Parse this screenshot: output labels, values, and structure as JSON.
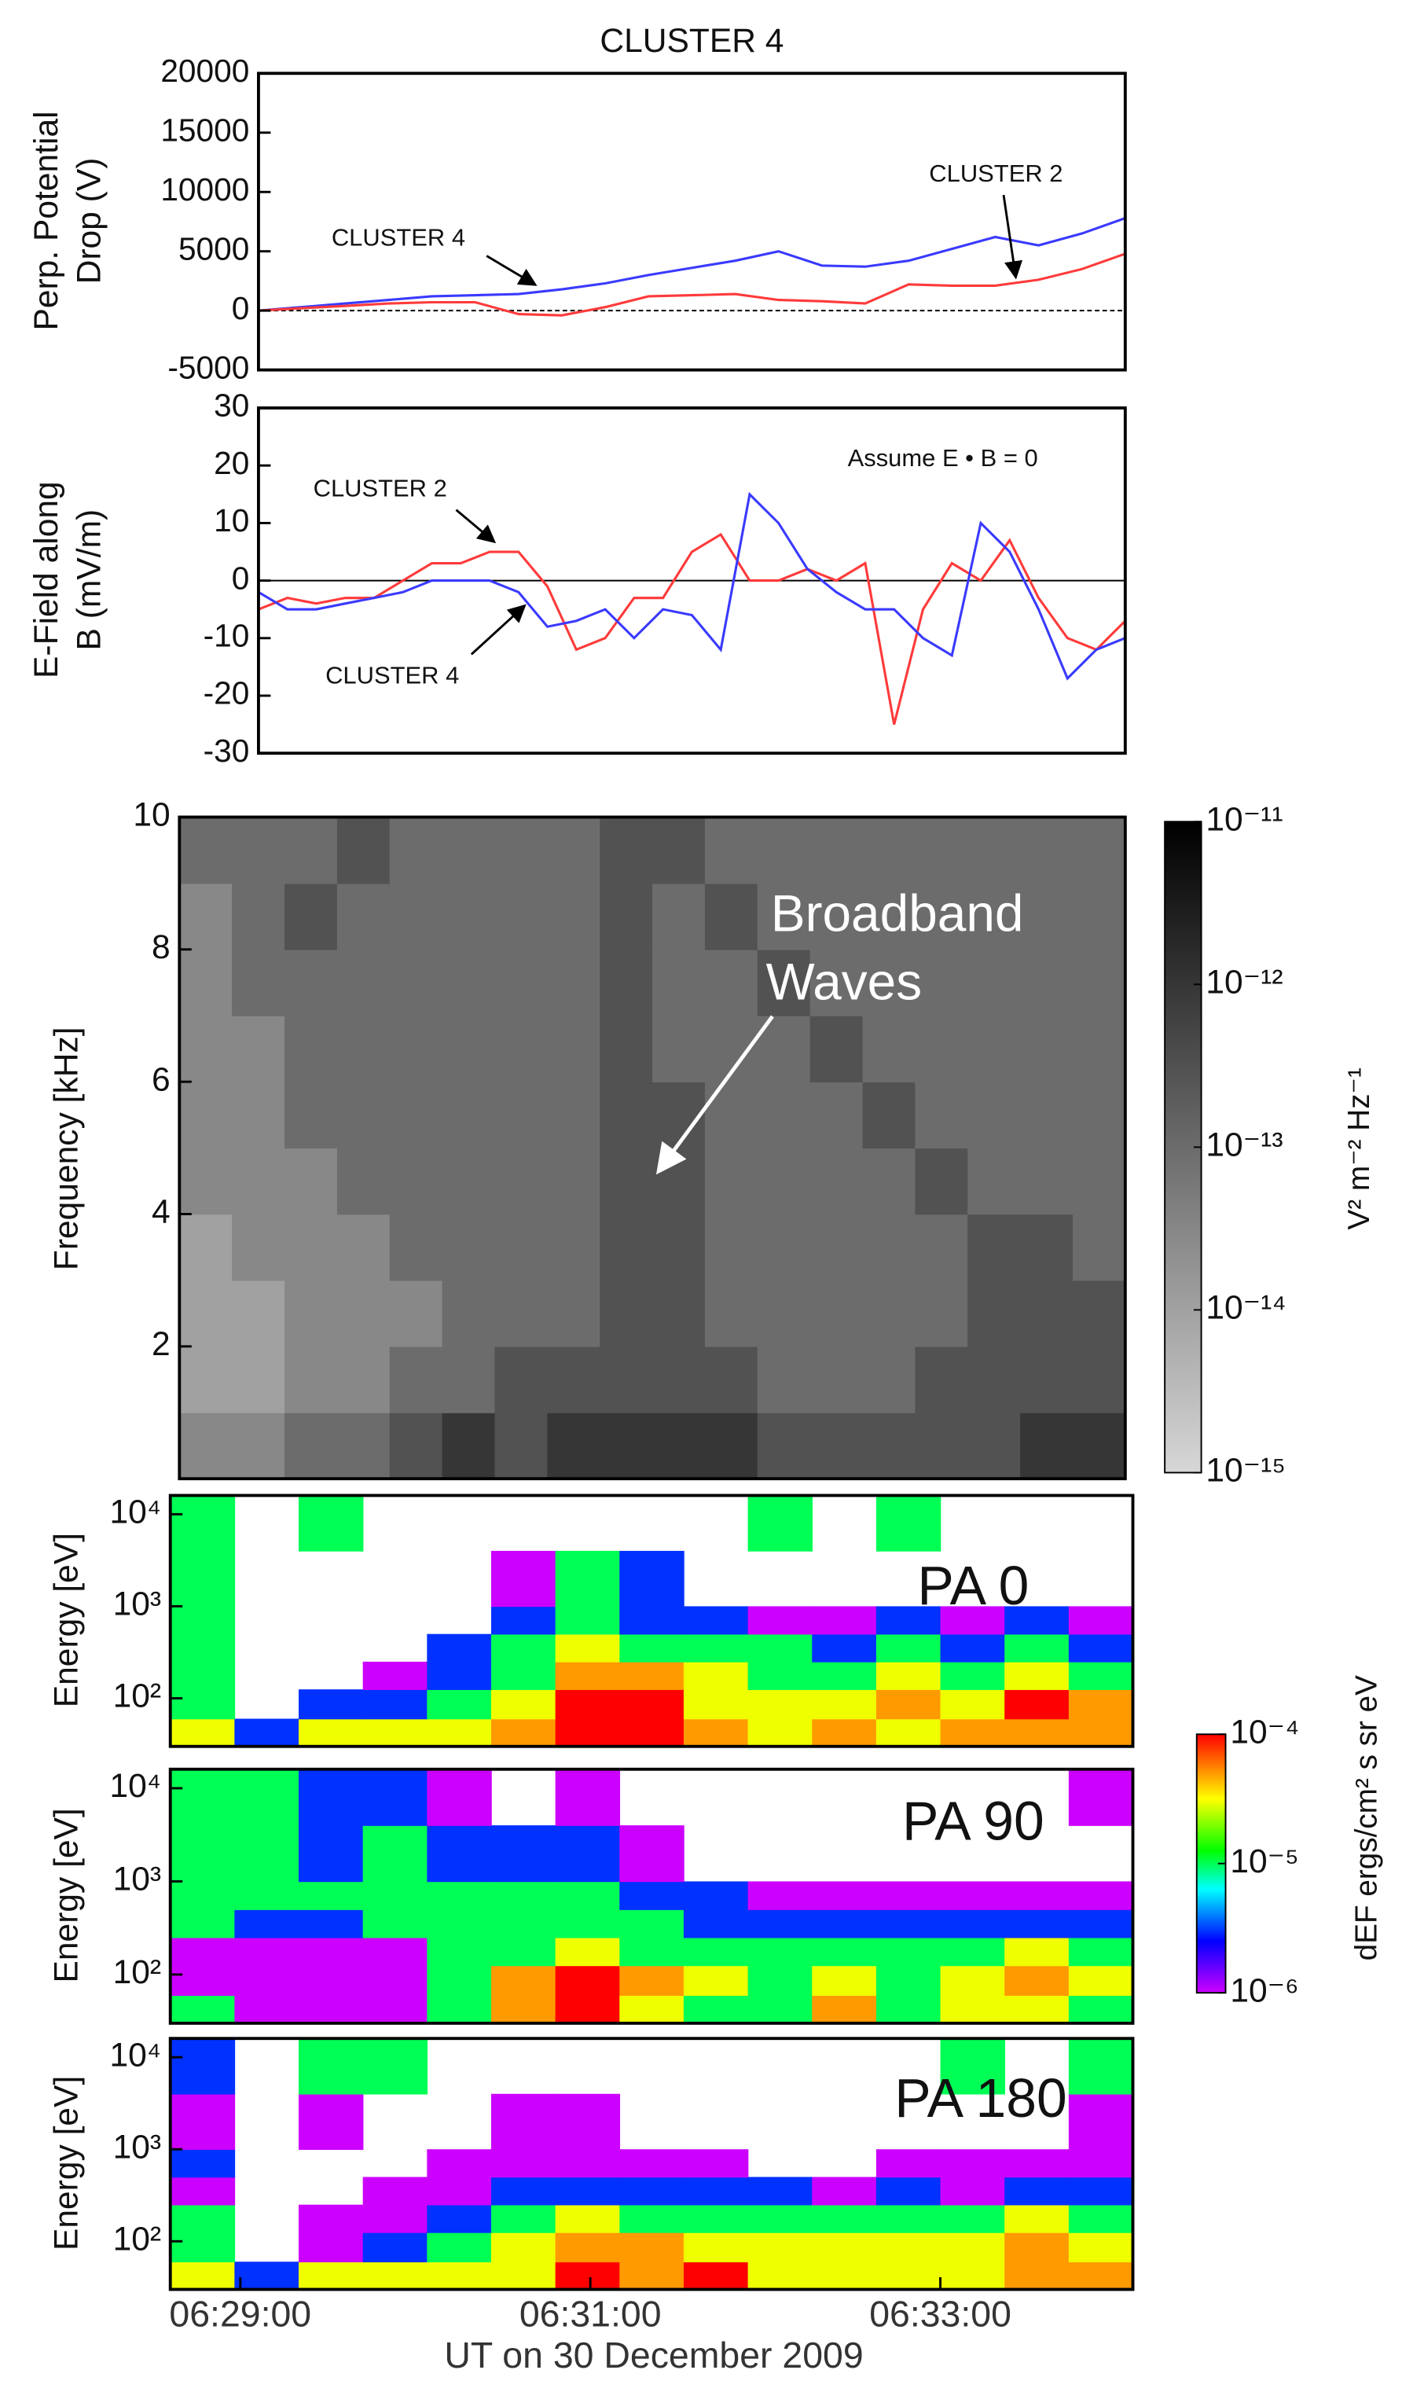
{
  "chart_data": [
    {
      "type": "line",
      "title": "CLUSTER 4",
      "ylabel": [
        "Perp. Potential",
        "Drop (V)"
      ],
      "xlim": [
        "06:29:00",
        "06:34:00"
      ],
      "x": [
        "06:29:00",
        "06:29:15",
        "06:29:30",
        "06:29:45",
        "06:30:00",
        "06:30:15",
        "06:30:30",
        "06:30:45",
        "06:31:00",
        "06:31:15",
        "06:31:30",
        "06:31:45",
        "06:32:00",
        "06:32:15",
        "06:32:30",
        "06:32:45",
        "06:33:00",
        "06:33:15",
        "06:33:30",
        "06:33:45",
        "06:34:00"
      ],
      "ylim": [
        -5000,
        20000
      ],
      "yticks": [
        -5000,
        0,
        5000,
        10000,
        15000,
        20000
      ],
      "zero_line": true,
      "series": [
        {
          "name": "CLUSTER 4",
          "color": "#3a3aff",
          "values": [
            0,
            300,
            600,
            900,
            1200,
            1300,
            1400,
            1800,
            2300,
            3000,
            3600,
            4200,
            5000,
            3800,
            3700,
            4200,
            5200,
            6200,
            5500,
            6500,
            7800
          ]
        },
        {
          "name": "CLUSTER 2",
          "color": "#ff3a3a",
          "values": [
            0,
            200,
            400,
            600,
            700,
            700,
            -300,
            -400,
            300,
            1200,
            1300,
            1400,
            900,
            800,
            600,
            2200,
            2100,
            2100,
            2600,
            3500,
            4800
          ]
        }
      ]
    },
    {
      "type": "line",
      "ylabel": [
        "E-Field along",
        "B (mV/m)"
      ],
      "annotation": "Assume E • B = 0",
      "xlim": [
        "06:29:00",
        "06:34:00"
      ],
      "x": [
        "06:29:00",
        "06:29:10",
        "06:29:20",
        "06:29:30",
        "06:29:40",
        "06:29:50",
        "06:30:00",
        "06:30:10",
        "06:30:20",
        "06:30:30",
        "06:30:40",
        "06:30:50",
        "06:31:00",
        "06:31:10",
        "06:31:20",
        "06:31:30",
        "06:31:40",
        "06:31:50",
        "06:32:00",
        "06:32:10",
        "06:32:20",
        "06:32:30",
        "06:32:40",
        "06:32:50",
        "06:33:00",
        "06:33:10",
        "06:33:20",
        "06:33:30",
        "06:33:40",
        "06:33:50",
        "06:34:00"
      ],
      "ylim": [
        -30,
        30
      ],
      "yticks": [
        -30,
        -20,
        -10,
        0,
        10,
        20,
        30
      ],
      "zero_line": true,
      "series": [
        {
          "name": "CLUSTER 2",
          "color": "#ff3a3a",
          "values": [
            -5,
            -3,
            -4,
            -3,
            -3,
            0,
            3,
            3,
            5,
            5,
            -1,
            -12,
            -10,
            -3,
            -3,
            5,
            8,
            0,
            0,
            2,
            0,
            3,
            -25,
            -5,
            3,
            0,
            7,
            -3,
            -10,
            -12,
            -7
          ]
        },
        {
          "name": "CLUSTER 4",
          "color": "#3a3aff",
          "values": [
            -2,
            -5,
            -5,
            -4,
            -3,
            -2,
            0,
            0,
            0,
            -2,
            -8,
            -7,
            -5,
            -10,
            -5,
            -6,
            -12,
            15,
            10,
            2,
            -2,
            -5,
            -5,
            -10,
            -13,
            10,
            5,
            -5,
            -17,
            -12,
            -10
          ]
        }
      ]
    },
    {
      "type": "spectrogram",
      "ylabel": "Frequency [kHz]",
      "annotation": [
        "Broadband",
        "Waves"
      ],
      "colormap": "gray",
      "xlim": [
        "06:28:36",
        "06:34:00"
      ],
      "xbins": [
        "06:28:36",
        "06:28:54",
        "06:29:12",
        "06:29:30",
        "06:29:48",
        "06:30:06",
        "06:30:24",
        "06:30:42",
        "06:31:00",
        "06:31:18",
        "06:31:36",
        "06:31:54",
        "06:32:12",
        "06:32:30",
        "06:32:48",
        "06:33:06",
        "06:33:24",
        "06:33:42",
        "06:34:00"
      ],
      "ybins": [
        0,
        1,
        2,
        3,
        4,
        5,
        6,
        7,
        8,
        9,
        10
      ],
      "ylim": [
        0,
        10
      ],
      "yticks": [
        2,
        4,
        6,
        8,
        10
      ],
      "z": [
        [
          3e-14,
          3e-14,
          1e-13,
          1e-13,
          3e-13,
          1e-12,
          3e-13,
          1e-12,
          1e-12,
          1e-12,
          1e-12,
          3e-13,
          3e-13,
          3e-13,
          3e-13,
          3e-13,
          1e-12,
          1e-12
        ],
        [
          1e-14,
          1e-14,
          3e-14,
          3e-14,
          1e-13,
          1e-13,
          3e-13,
          3e-13,
          3e-13,
          3e-13,
          3e-13,
          1e-13,
          1e-13,
          1e-13,
          3e-13,
          3e-13,
          3e-13,
          3e-13
        ],
        [
          1e-14,
          1e-14,
          3e-14,
          3e-14,
          3e-14,
          1e-13,
          1e-13,
          1e-13,
          3e-13,
          3e-13,
          1e-13,
          1e-13,
          1e-13,
          1e-13,
          1e-13,
          3e-13,
          3e-13,
          3e-13
        ],
        [
          1e-14,
          3e-14,
          3e-14,
          3e-14,
          1e-13,
          1e-13,
          1e-13,
          1e-13,
          3e-13,
          3e-13,
          1e-13,
          1e-13,
          1e-13,
          1e-13,
          1e-13,
          3e-13,
          3e-13,
          1e-13
        ],
        [
          3e-14,
          3e-14,
          3e-14,
          1e-13,
          1e-13,
          1e-13,
          1e-13,
          1e-13,
          3e-13,
          3e-13,
          1e-13,
          1e-13,
          1e-13,
          1e-13,
          3e-13,
          1e-13,
          1e-13,
          1e-13
        ],
        [
          3e-14,
          3e-14,
          1e-13,
          1e-13,
          1e-13,
          1e-13,
          1e-13,
          1e-13,
          3e-13,
          3e-13,
          1e-13,
          1e-13,
          1e-13,
          3e-13,
          1e-13,
          1e-13,
          1e-13,
          1e-13
        ],
        [
          3e-14,
          3e-14,
          1e-13,
          1e-13,
          1e-13,
          1e-13,
          1e-13,
          1e-13,
          3e-13,
          1e-13,
          1e-13,
          1e-13,
          3e-13,
          1e-13,
          1e-13,
          1e-13,
          1e-13,
          1e-13
        ],
        [
          3e-14,
          1e-13,
          1e-13,
          1e-13,
          1e-13,
          1e-13,
          1e-13,
          1e-13,
          3e-13,
          1e-13,
          1e-13,
          3e-13,
          1e-13,
          1e-13,
          1e-13,
          1e-13,
          1e-13,
          1e-13
        ],
        [
          3e-14,
          1e-13,
          3e-13,
          1e-13,
          1e-13,
          1e-13,
          1e-13,
          1e-13,
          3e-13,
          1e-13,
          3e-13,
          1e-13,
          1e-13,
          1e-13,
          1e-13,
          1e-13,
          1e-13,
          1e-13
        ],
        [
          1e-13,
          1e-13,
          1e-13,
          3e-13,
          1e-13,
          1e-13,
          1e-13,
          1e-13,
          3e-13,
          3e-13,
          1e-13,
          1e-13,
          1e-13,
          1e-13,
          1e-13,
          1e-13,
          1e-13,
          1e-13
        ]
      ],
      "colorbar": {
        "label": "V² m⁻² Hz⁻¹",
        "lim": [
          1e-15,
          1e-11
        ],
        "log": true,
        "ticks": [
          {
            "value": 1e-11,
            "label": "10⁻¹¹"
          },
          {
            "value": 1e-12,
            "label": "10⁻¹²"
          },
          {
            "value": 1e-13,
            "label": "10⁻¹³"
          },
          {
            "value": 1e-14,
            "label": "10⁻¹⁴"
          },
          {
            "value": 1e-15,
            "label": "10⁻¹⁵"
          }
        ]
      }
    },
    {
      "type": "spectrogram",
      "ylabel": "Energy [eV]",
      "panel_label": "PA 0",
      "colormap": "jet",
      "clim": [
        1e-06,
        0.0001
      ],
      "ylog": true,
      "xlim": [
        "06:28:36",
        "06:34:06"
      ],
      "xbins": [
        "06:28:36",
        "06:28:58",
        "06:29:20",
        "06:29:42",
        "06:30:04",
        "06:30:26",
        "06:30:48",
        "06:31:10",
        "06:31:32",
        "06:31:54",
        "06:32:16",
        "06:32:38",
        "06:33:00",
        "06:33:22",
        "06:33:44",
        "06:34:06"
      ],
      "ybins": [
        30,
        60,
        125,
        250,
        500,
        1000,
        4000,
        16000
      ],
      "ylim": [
        30,
        16000
      ],
      "yticks": [
        {
          "value": 100,
          "label": "10²"
        },
        {
          "value": 1000,
          "label": "10³"
        },
        {
          "value": 10000,
          "label": "10⁴"
        }
      ],
      "z": [
        [
          3e-05,
          3e-06,
          3e-05,
          3e-05,
          3e-05,
          5e-05,
          0.0001,
          0.0001,
          5e-05,
          3e-05,
          5e-05,
          3e-05,
          5e-05,
          5e-05,
          5e-05
        ],
        [
          1e-05,
          null,
          3e-06,
          3e-06,
          1e-05,
          3e-05,
          0.0001,
          0.0001,
          3e-05,
          3e-05,
          3e-05,
          5e-05,
          3e-05,
          0.0001,
          5e-05
        ],
        [
          1e-05,
          null,
          null,
          1e-06,
          3e-06,
          1e-05,
          5e-05,
          5e-05,
          3e-05,
          1e-05,
          1e-05,
          3e-05,
          1e-05,
          3e-05,
          1e-05
        ],
        [
          1e-05,
          null,
          null,
          null,
          3e-06,
          1e-05,
          3e-05,
          1e-05,
          1e-05,
          1e-05,
          3e-06,
          1e-05,
          3e-06,
          1e-05,
          3e-06
        ],
        [
          1e-05,
          null,
          null,
          null,
          null,
          3e-06,
          1e-05,
          3e-06,
          3e-06,
          1e-06,
          1e-06,
          3e-06,
          1e-06,
          3e-06,
          1e-06
        ],
        [
          1e-05,
          null,
          null,
          null,
          null,
          1e-06,
          1e-05,
          3e-06,
          null,
          null,
          null,
          null,
          null,
          null,
          null
        ],
        [
          1e-05,
          null,
          1e-05,
          null,
          null,
          null,
          null,
          null,
          null,
          1e-05,
          null,
          1e-05,
          null,
          null,
          null
        ]
      ]
    },
    {
      "type": "spectrogram",
      "ylabel": "Energy [eV]",
      "panel_label": "PA 90",
      "colormap": "jet",
      "clim": [
        1e-06,
        0.0001
      ],
      "ylog": true,
      "xlim": [
        "06:28:36",
        "06:34:06"
      ],
      "xbins": [
        "06:28:36",
        "06:28:58",
        "06:29:20",
        "06:29:42",
        "06:30:04",
        "06:30:26",
        "06:30:48",
        "06:31:10",
        "06:31:32",
        "06:31:54",
        "06:32:16",
        "06:32:38",
        "06:33:00",
        "06:33:22",
        "06:33:44",
        "06:34:06"
      ],
      "ybins": [
        30,
        60,
        125,
        250,
        500,
        1000,
        4000,
        16000
      ],
      "ylim": [
        30,
        16000
      ],
      "yticks": [
        {
          "value": 100,
          "label": "10²"
        },
        {
          "value": 1000,
          "label": "10³"
        },
        {
          "value": 10000,
          "label": "10⁴"
        }
      ],
      "z": [
        [
          1e-05,
          1e-06,
          1e-06,
          1e-06,
          1e-05,
          5e-05,
          0.0001,
          3e-05,
          1e-05,
          1e-05,
          5e-05,
          1e-05,
          3e-05,
          3e-05,
          1e-05
        ],
        [
          1e-06,
          1e-06,
          1e-06,
          1e-06,
          1e-05,
          5e-05,
          0.0001,
          5e-05,
          3e-05,
          1e-05,
          3e-05,
          1e-05,
          3e-05,
          5e-05,
          3e-05
        ],
        [
          1e-06,
          1e-06,
          1e-06,
          1e-06,
          1e-05,
          1e-05,
          3e-05,
          1e-05,
          1e-05,
          1e-05,
          1e-05,
          1e-05,
          1e-05,
          3e-05,
          1e-05
        ],
        [
          1e-05,
          3e-06,
          3e-06,
          1e-05,
          1e-05,
          1e-05,
          1e-05,
          1e-05,
          3e-06,
          3e-06,
          3e-06,
          3e-06,
          3e-06,
          3e-06,
          3e-06
        ],
        [
          1e-05,
          1e-05,
          1e-05,
          1e-05,
          1e-05,
          1e-05,
          1e-05,
          3e-06,
          3e-06,
          1e-06,
          1e-06,
          1e-06,
          1e-06,
          1e-06,
          1e-06
        ],
        [
          1e-05,
          1e-05,
          3e-06,
          1e-05,
          3e-06,
          3e-06,
          3e-06,
          1e-06,
          null,
          null,
          null,
          null,
          null,
          null,
          null
        ],
        [
          1e-05,
          1e-05,
          3e-06,
          3e-06,
          1e-06,
          null,
          1e-06,
          null,
          null,
          null,
          null,
          null,
          null,
          null,
          1e-06
        ]
      ],
      "colorbar": {
        "label": "dEF ergs/cm² s sr eV",
        "lim": [
          1e-06,
          0.0001
        ],
        "log": true,
        "ticks": [
          {
            "value": 0.0001,
            "label": "10⁻⁴"
          },
          {
            "value": 1e-05,
            "label": "10⁻⁵"
          },
          {
            "value": 1e-06,
            "label": "10⁻⁶"
          }
        ]
      }
    },
    {
      "type": "spectrogram",
      "ylabel": "Energy [eV]",
      "panel_label": "PA 180",
      "colormap": "jet",
      "clim": [
        1e-06,
        0.0001
      ],
      "ylog": true,
      "xlim": [
        "06:28:36",
        "06:34:06"
      ],
      "xbins": [
        "06:28:36",
        "06:28:58",
        "06:29:20",
        "06:29:42",
        "06:30:04",
        "06:30:26",
        "06:30:48",
        "06:31:10",
        "06:31:32",
        "06:31:54",
        "06:32:16",
        "06:32:38",
        "06:33:00",
        "06:33:22",
        "06:33:44",
        "06:34:06"
      ],
      "ybins": [
        30,
        60,
        125,
        250,
        500,
        1000,
        4000,
        16000
      ],
      "ylim": [
        30,
        16000
      ],
      "yticks": [
        {
          "value": 100,
          "label": "10²"
        },
        {
          "value": 1000,
          "label": "10³"
        },
        {
          "value": 10000,
          "label": "10⁴"
        }
      ],
      "xticks": [
        "06:29:00",
        "06:31:00",
        "06:33:00"
      ],
      "xlabel": "UT on 30 December 2009",
      "z": [
        [
          3e-05,
          3e-06,
          3e-05,
          3e-05,
          3e-05,
          3e-05,
          0.0001,
          5e-05,
          0.0001,
          3e-05,
          3e-05,
          3e-05,
          3e-05,
          5e-05,
          5e-05
        ],
        [
          1e-05,
          null,
          1e-06,
          3e-06,
          1e-05,
          3e-05,
          5e-05,
          5e-05,
          3e-05,
          3e-05,
          3e-05,
          3e-05,
          3e-05,
          5e-05,
          3e-05
        ],
        [
          1e-05,
          null,
          1e-06,
          1e-06,
          3e-06,
          1e-05,
          3e-05,
          1e-05,
          1e-05,
          1e-05,
          1e-05,
          1e-05,
          1e-05,
          3e-05,
          1e-05
        ],
        [
          1e-06,
          null,
          null,
          1e-06,
          1e-06,
          3e-06,
          3e-06,
          3e-06,
          3e-06,
          3e-06,
          1e-06,
          3e-06,
          1e-06,
          3e-06,
          3e-06
        ],
        [
          3e-06,
          null,
          null,
          null,
          1e-06,
          1e-06,
          1e-06,
          1e-06,
          1e-06,
          null,
          null,
          1e-06,
          1e-06,
          1e-06,
          1e-06
        ],
        [
          1e-06,
          null,
          1e-06,
          null,
          null,
          1e-06,
          1e-06,
          null,
          null,
          null,
          null,
          null,
          null,
          null,
          1e-06
        ],
        [
          3e-06,
          null,
          1e-05,
          1e-05,
          null,
          null,
          null,
          null,
          null,
          null,
          null,
          null,
          1e-05,
          null,
          1e-05
        ]
      ]
    }
  ]
}
